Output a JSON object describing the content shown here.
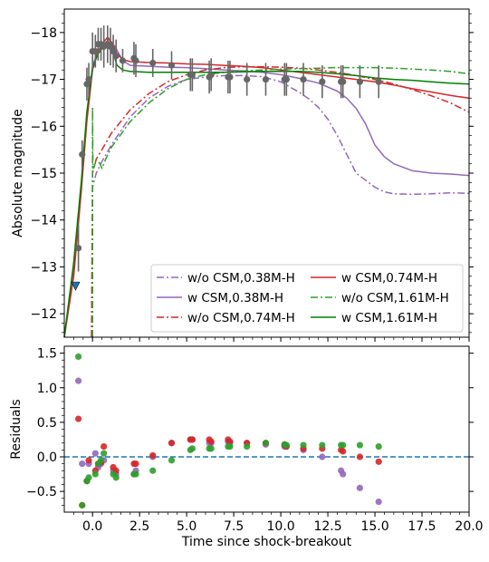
{
  "chart_data": [
    {
      "type": "line",
      "xlim": [
        -1.5,
        20.0
      ],
      "ylim": [
        -11.5,
        -18.5
      ],
      "y_inverted": true,
      "ylabel": "Absolute magnitude",
      "yticks": [
        -18,
        -17,
        -16,
        -15,
        -14,
        -13,
        -12
      ],
      "ytick_labels": [
        "−18",
        "−17",
        "−16",
        "−15",
        "−14",
        "−13",
        "−12"
      ],
      "legend_position": "lower-right",
      "legend_columns": 2,
      "series": [
        {
          "name": "w/o CSM,0.38M-H",
          "color": "#9467bd",
          "style": "dashdot",
          "x": [
            -0.05,
            0.0,
            0.2,
            0.5,
            1.0,
            2.0,
            3.0,
            4.0,
            5.0,
            6.0,
            7.0,
            8.0,
            9.0,
            10.0,
            11.0,
            11.5,
            12.0,
            12.5,
            13.0,
            13.5,
            14.0,
            14.5,
            15.0,
            15.5,
            16.0,
            17.0,
            18.0,
            19.0,
            20.0
          ],
          "y": [
            -11.5,
            -14.7,
            -15.0,
            -15.25,
            -15.6,
            -16.2,
            -16.6,
            -16.85,
            -17.0,
            -17.05,
            -17.08,
            -17.08,
            -17.06,
            -16.95,
            -16.72,
            -16.58,
            -16.4,
            -16.15,
            -15.8,
            -15.4,
            -15.0,
            -14.85,
            -14.7,
            -14.6,
            -14.56,
            -14.55,
            -14.56,
            -14.58,
            -14.57
          ]
        },
        {
          "name": "w CSM,0.38M-H",
          "color": "#9467bd",
          "style": "solid",
          "x": [
            -1.5,
            -1.0,
            -0.6,
            -0.3,
            0.0,
            0.3,
            0.6,
            0.85,
            1.2,
            1.6,
            2.0,
            3.0,
            4.0,
            5.0,
            6.0,
            7.0,
            8.0,
            9.0,
            10.0,
            11.0,
            12.0,
            13.0,
            13.5,
            14.0,
            14.5,
            15.0,
            15.5,
            16.0,
            17.0,
            18.0,
            19.0,
            20.0
          ],
          "y": [
            -11.5,
            -13.0,
            -14.7,
            -16.2,
            -17.3,
            -17.6,
            -17.75,
            -17.85,
            -17.7,
            -17.4,
            -17.3,
            -17.28,
            -17.26,
            -17.25,
            -17.23,
            -17.2,
            -17.18,
            -17.15,
            -17.1,
            -17.02,
            -16.92,
            -16.75,
            -16.6,
            -16.38,
            -16.05,
            -15.6,
            -15.35,
            -15.2,
            -15.05,
            -15.0,
            -14.98,
            -14.95
          ]
        },
        {
          "name": "w/o CSM,0.74M-H",
          "color": "#d62728",
          "style": "dashdot",
          "x": [
            -0.05,
            0.0,
            0.2,
            0.5,
            1.0,
            2.0,
            3.0,
            4.0,
            5.0,
            6.0,
            7.0,
            8.0,
            9.0,
            10.0,
            11.0,
            12.0,
            13.0,
            14.0,
            15.0,
            16.0,
            17.0,
            18.0,
            19.0,
            20.0
          ],
          "y": [
            -11.5,
            -15.0,
            -15.3,
            -15.5,
            -15.85,
            -16.35,
            -16.7,
            -16.95,
            -17.1,
            -17.2,
            -17.25,
            -17.27,
            -17.27,
            -17.26,
            -17.24,
            -17.2,
            -17.15,
            -17.08,
            -17.0,
            -16.9,
            -16.78,
            -16.65,
            -16.5,
            -16.3
          ]
        },
        {
          "name": "w CSM,0.74M-H",
          "color": "#d62728",
          "style": "solid",
          "x": [
            -1.5,
            -1.0,
            -0.6,
            -0.3,
            0.0,
            0.3,
            0.6,
            0.8,
            1.0,
            1.3,
            1.6,
            2.0,
            3.0,
            4.0,
            5.0,
            6.0,
            7.0,
            8.0,
            9.0,
            10.0,
            11.0,
            12.0,
            13.0,
            14.0,
            15.0,
            16.0,
            17.0,
            18.0,
            19.0,
            20.0
          ],
          "y": [
            -11.5,
            -12.8,
            -14.6,
            -16.1,
            -17.2,
            -17.6,
            -17.8,
            -17.9,
            -17.8,
            -17.55,
            -17.42,
            -17.38,
            -17.36,
            -17.35,
            -17.33,
            -17.32,
            -17.3,
            -17.28,
            -17.25,
            -17.2,
            -17.15,
            -17.1,
            -17.05,
            -17.0,
            -16.95,
            -16.88,
            -16.8,
            -16.73,
            -16.66,
            -16.6
          ]
        },
        {
          "name": "w/o CSM,1.61M-H",
          "color": "#2ca02c",
          "style": "dashdot",
          "x": [
            0.0,
            0.0,
            0.02,
            0.1,
            0.2,
            0.4,
            0.5,
            0.7,
            1.0,
            2.0,
            3.0,
            4.0,
            5.0,
            6.0,
            7.0,
            8.0,
            9.0,
            10.0,
            11.0,
            12.0,
            13.0,
            14.0,
            15.0,
            16.0,
            17.0,
            18.0,
            19.0,
            20.0
          ],
          "y": [
            -11.5,
            -16.4,
            -15.1,
            -15.15,
            -15.3,
            -15.2,
            -15.1,
            -15.3,
            -15.55,
            -16.1,
            -16.5,
            -16.8,
            -17.0,
            -17.1,
            -17.15,
            -17.18,
            -17.2,
            -17.22,
            -17.23,
            -17.24,
            -17.25,
            -17.25,
            -17.25,
            -17.24,
            -17.22,
            -17.2,
            -17.17,
            -17.12
          ]
        },
        {
          "name": "w CSM,1.61M-H",
          "color": "#008000",
          "style": "solid",
          "x": [
            -1.5,
            -1.0,
            -0.6,
            -0.3,
            0.0,
            0.3,
            0.6,
            1.0,
            1.3,
            1.6,
            2.0,
            3.0,
            4.0,
            5.0,
            6.0,
            7.0,
            8.0,
            9.0,
            10.0,
            11.0,
            12.0,
            13.0,
            14.0,
            15.0,
            16.0,
            17.0,
            18.0,
            19.0,
            20.0
          ],
          "y": [
            -11.5,
            -13.1,
            -14.8,
            -16.3,
            -17.25,
            -17.55,
            -17.7,
            -17.7,
            -17.3,
            -17.2,
            -17.17,
            -17.15,
            -17.15,
            -17.15,
            -17.15,
            -17.15,
            -17.16,
            -17.17,
            -17.17,
            -17.17,
            -17.15,
            -17.12,
            -17.08,
            -17.03,
            -17.0,
            -16.98,
            -16.95,
            -16.92,
            -16.9
          ]
        }
      ],
      "observed": {
        "color": "#666666",
        "x": [
          -0.75,
          -0.55,
          -0.3,
          -0.2,
          0.0,
          0.15,
          0.3,
          0.45,
          0.6,
          0.8,
          0.95,
          1.1,
          1.25,
          1.6,
          2.2,
          2.3,
          3.2,
          4.2,
          5.2,
          5.3,
          6.2,
          6.3,
          7.2,
          7.3,
          8.2,
          9.2,
          10.2,
          10.3,
          11.2,
          12.2,
          13.2,
          13.3,
          14.2,
          15.2
        ],
        "y": [
          -13.4,
          -15.4,
          -16.9,
          -17.0,
          -17.6,
          -17.6,
          -17.75,
          -17.75,
          -17.7,
          -17.75,
          -17.7,
          -17.6,
          -17.5,
          -17.4,
          -17.45,
          -17.4,
          -17.35,
          -17.3,
          -17.1,
          -17.1,
          -17.05,
          -17.1,
          -17.05,
          -17.05,
          -17.0,
          -17.0,
          -17.0,
          -17.0,
          -17.0,
          -16.95,
          -16.95,
          -16.95,
          -16.95,
          -16.95
        ],
        "err": [
          0.5,
          0.3,
          0.35,
          0.35,
          0.4,
          0.35,
          0.35,
          0.35,
          0.45,
          0.4,
          0.4,
          0.35,
          0.35,
          0.25,
          0.35,
          0.35,
          0.3,
          0.3,
          0.35,
          0.35,
          0.35,
          0.35,
          0.35,
          0.35,
          0.35,
          0.35,
          0.35,
          0.35,
          0.35,
          0.35,
          0.35,
          0.35,
          0.35,
          0.35
        ]
      },
      "upper_limit": {
        "x": -0.9,
        "y": -12.6,
        "color": "#1f77b4"
      }
    },
    {
      "type": "scatter",
      "xlim": [
        -1.5,
        20.0
      ],
      "ylim": [
        -0.8,
        1.6
      ],
      "xlabel": "Time since shock-breakout",
      "ylabel": "Residuals",
      "xticks": [
        0.0,
        2.5,
        5.0,
        7.5,
        10.0,
        12.5,
        15.0,
        17.5,
        20.0
      ],
      "xtick_labels": [
        "0.0",
        "2.5",
        "5.0",
        "7.5",
        "10.0",
        "12.5",
        "15.0",
        "17.5",
        "20.0"
      ],
      "yticks": [
        -0.5,
        0.0,
        0.5,
        1.0,
        1.5
      ],
      "ytick_labels": [
        "−0.5",
        "0.0",
        "0.5",
        "1.0",
        "1.5"
      ],
      "zero_line_color": "#1f77b4",
      "x": [
        -0.75,
        -0.55,
        -0.3,
        -0.2,
        0.15,
        0.3,
        0.45,
        0.6,
        1.1,
        1.25,
        2.2,
        2.3,
        3.2,
        4.2,
        5.2,
        5.3,
        6.2,
        6.3,
        7.2,
        7.3,
        8.2,
        9.2,
        10.2,
        10.3,
        11.2,
        12.2,
        13.2,
        13.3,
        14.2,
        15.2
      ],
      "series": [
        {
          "color": "#9467bd",
          "y": [
            1.1,
            -0.1,
            -0.35,
            -0.1,
            0.05,
            -0.15,
            -0.1,
            -0.05,
            -0.2,
            -0.25,
            -0.25,
            -0.2,
            0.0,
            0.2,
            0.25,
            0.25,
            0.2,
            0.2,
            0.22,
            0.2,
            0.2,
            0.18,
            0.15,
            0.15,
            0.1,
            0.0,
            -0.2,
            -0.25,
            -0.45,
            -0.65
          ]
        },
        {
          "color": "#d62728",
          "y": [
            0.55,
            -0.7,
            -0.35,
            -0.05,
            -0.2,
            -0.1,
            -0.08,
            0.15,
            -0.15,
            -0.2,
            -0.1,
            -0.1,
            0.02,
            0.2,
            0.25,
            0.25,
            0.25,
            0.22,
            0.25,
            0.22,
            0.2,
            0.2,
            0.17,
            0.15,
            0.12,
            0.12,
            0.1,
            0.08,
            0.0,
            -0.07
          ]
        },
        {
          "color": "#2ca02c",
          "y": [
            1.45,
            -0.7,
            -0.35,
            -0.3,
            -0.25,
            -0.1,
            -0.05,
            0.05,
            -0.25,
            -0.3,
            -0.25,
            -0.25,
            -0.2,
            -0.05,
            0.1,
            0.12,
            0.12,
            0.12,
            0.15,
            0.15,
            0.15,
            0.2,
            0.18,
            0.17,
            0.17,
            0.17,
            0.17,
            0.17,
            0.17,
            0.15
          ]
        }
      ]
    }
  ]
}
